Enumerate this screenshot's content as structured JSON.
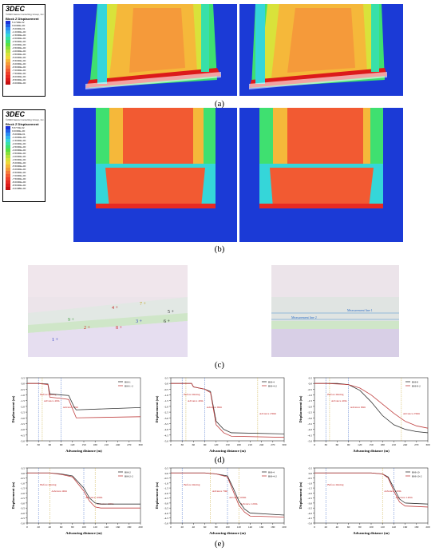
{
  "panels": {
    "a": "(a)",
    "b": "(b)",
    "c": "(c)",
    "d": "(d)",
    "e": "(e)"
  },
  "legend_a": {
    "brand": "3DEC",
    "company": "©2020 Itasca Consulting Group, Inc.",
    "title": "Block Z Displacement",
    "values": [
      "5.1746E-02",
      "0.0000E+00",
      "-5.0000E-01",
      "-1.0000E+00",
      "-1.5000E+00",
      "-2.0000E+00",
      "-2.5000E+00",
      "-3.0000E+00",
      "-3.5000E+00",
      "-4.0000E+00",
      "-4.5000E+00",
      "-5.0000E+00",
      "-5.5000E+00",
      "-6.0000E+00",
      "-6.5000E+00",
      "-7.0000E+00",
      "-7.5000E+00",
      "-8.0000E+00",
      "-8.5000E+00",
      "-9.0000E+00"
    ],
    "colors": [
      "#1a30d9",
      "#1f5ee8",
      "#2b8cf2",
      "#33b5ee",
      "#35d6d9",
      "#38e0a8",
      "#3fe070",
      "#5ae040",
      "#8ae03a",
      "#b6e23a",
      "#d9e23a",
      "#f0d83a",
      "#f5b83a",
      "#f59a3a",
      "#f57a3a",
      "#f25a32",
      "#ee3f2a",
      "#e82a22",
      "#dc1a1a",
      "#c41010"
    ]
  },
  "legend_b": {
    "brand": "3DEC",
    "company": "©2020 Itasca Consulting Group, Inc.",
    "title": "Block Z Displacement",
    "values": [
      "5.5774E-02",
      "0.0000E+00",
      "-5.0000E-01",
      "-1.0000E+00",
      "-1.5000E+00",
      "-2.0000E+00",
      "-2.5000E+00",
      "-3.0000E+00",
      "-3.5000E+00",
      "-4.0000E+00",
      "-4.5000E+00",
      "-5.0000E+00",
      "-5.5000E+00",
      "-6.0000E+00",
      "-6.5000E+00",
      "-7.0000E+00",
      "-7.5000E+00",
      "-8.0000E+00",
      "-8.5000E+00",
      "-9.0188E+00"
    ],
    "colors": [
      "#1a30d9",
      "#1f5ee8",
      "#2b8cf2",
      "#33b5ee",
      "#35d6d9",
      "#38e0a8",
      "#3fe070",
      "#5ae040",
      "#8ae03a",
      "#b6e23a",
      "#d9e23a",
      "#f0d83a",
      "#f5b83a",
      "#f59a3a",
      "#f57a3a",
      "#f25a32",
      "#ee3f2a",
      "#e82a22",
      "#dc1a1a",
      "#c41010"
    ]
  },
  "model_c": {
    "left_points": [
      "1",
      "2",
      "3",
      "4",
      "5",
      "6",
      "7",
      "8",
      "9"
    ],
    "right_labels": [
      "Measurement line 1",
      "Measurement line 2"
    ]
  },
  "charts_d": [
    {
      "title": "",
      "xlabel": "Advancing distance (m)",
      "ylabel": "Displacement (m)",
      "legend": [
        "BH-1",
        "BH-1-2"
      ],
      "annotations": [
        "Before mining",
        "Advance 40m",
        "Advance 90m"
      ],
      "xticks": [
        "0",
        "30",
        "60",
        "90",
        "120",
        "150",
        "180",
        "210",
        "240",
        "270",
        "300"
      ],
      "yticks": [
        "0.5",
        "0.0",
        "-0.5",
        "-1.0",
        "-1.5",
        "-2.0",
        "-2.5",
        "-3.0",
        "-3.5",
        "-4.0",
        "-4.5",
        "-5.0"
      ],
      "series": [
        {
          "name": "BH-1",
          "x": [
            0,
            30,
            55,
            60,
            90,
            110,
            125,
            130,
            300
          ],
          "y": [
            0.0,
            0.0,
            -0.05,
            -0.9,
            -1.0,
            -1.05,
            -2.1,
            -2.3,
            -2.1
          ]
        },
        {
          "name": "BH-1-2",
          "x": [
            0,
            30,
            55,
            60,
            90,
            110,
            125,
            130,
            300
          ],
          "y": [
            0.0,
            0.0,
            -0.1,
            -1.2,
            -1.3,
            -1.4,
            -2.6,
            -3.0,
            -2.9
          ]
        }
      ]
    },
    {
      "title": "",
      "xlabel": "Advancing distance (m)",
      "ylabel": "Displacement (m)",
      "legend": [
        "BH-4",
        "BH-4-2"
      ],
      "annotations": [
        "Before mining",
        "Advance 40m",
        "Advance 90m",
        "Advance 230m"
      ],
      "xticks": [
        "0",
        "30",
        "60",
        "90",
        "120",
        "150",
        "180",
        "210",
        "240",
        "270",
        "300"
      ],
      "yticks": [
        "0.5",
        "0.0",
        "-0.5",
        "-1.0",
        "-1.5",
        "-2.0",
        "-2.5",
        "-3.0",
        "-3.5",
        "-4.0",
        "-4.5",
        "-5.0"
      ],
      "series": [
        {
          "name": "BH-4",
          "x": [
            0,
            30,
            55,
            60,
            90,
            105,
            120,
            140,
            160,
            300
          ],
          "y": [
            0.0,
            0.0,
            0.0,
            -0.3,
            -0.5,
            -0.7,
            -3.3,
            -4.0,
            -4.3,
            -4.4
          ]
        },
        {
          "name": "BH-4-2",
          "x": [
            0,
            30,
            55,
            60,
            90,
            105,
            120,
            140,
            160,
            300
          ],
          "y": [
            0.0,
            0.0,
            0.0,
            -0.3,
            -0.5,
            -0.8,
            -3.6,
            -4.3,
            -4.6,
            -4.7
          ]
        }
      ]
    },
    {
      "title": "",
      "xlabel": "Advancing distance (m)",
      "ylabel": "Displacement (m)",
      "legend": [
        "BH-8",
        "BH-8-2"
      ],
      "annotations": [
        "Before mining",
        "Advance 40m",
        "Advance 90m",
        "Advance 230m"
      ],
      "xticks": [
        "0",
        "30",
        "60",
        "90",
        "120",
        "150",
        "180",
        "210",
        "240",
        "270",
        "300"
      ],
      "yticks": [
        "0.5",
        "0.0",
        "-0.5",
        "-1.0",
        "-1.5",
        "-2.0",
        "-2.5",
        "-3.0",
        "-3.5",
        "-4.0",
        "-4.5",
        "-5.0"
      ],
      "series": [
        {
          "name": "BH-8",
          "x": [
            0,
            30,
            60,
            90,
            120,
            150,
            180,
            210,
            240,
            270,
            300
          ],
          "y": [
            0.0,
            0.0,
            0.0,
            -0.1,
            -0.6,
            -1.6,
            -2.8,
            -3.6,
            -4.0,
            -4.2,
            -4.3
          ]
        },
        {
          "name": "BH-8-2",
          "x": [
            0,
            30,
            60,
            90,
            120,
            150,
            180,
            210,
            240,
            270,
            300
          ],
          "y": [
            0.0,
            0.0,
            -0.05,
            -0.1,
            -0.4,
            -1.0,
            -1.8,
            -2.6,
            -3.3,
            -3.7,
            -3.9
          ]
        }
      ]
    }
  ],
  "charts_e": [
    {
      "title": "",
      "xlabel": "Advancing distance (m)",
      "ylabel": "Displacement (m)",
      "legend": [
        "BH-2",
        "BH-2-2"
      ],
      "annotations": [
        "Before mining",
        "Advance 40m",
        "Advance 100m",
        "Advance 120m"
      ],
      "xticks": [
        "0",
        "20",
        "40",
        "60",
        "80",
        "100",
        "120",
        "140",
        "160",
        "180",
        "200"
      ],
      "yticks": [
        "0.5",
        "0.0",
        "-0.5",
        "-1.0",
        "-1.5",
        "-2.0",
        "-2.5",
        "-3.0",
        "-3.5",
        "-4.0",
        "-4.5",
        "-5.0"
      ],
      "series": [
        {
          "name": "BH-2",
          "x": [
            0,
            20,
            40,
            60,
            80,
            100,
            110,
            120,
            130,
            200
          ],
          "y": [
            0.0,
            0.0,
            0.0,
            -0.1,
            -0.3,
            -1.5,
            -2.5,
            -3.0,
            -3.1,
            -3.1
          ]
        },
        {
          "name": "BH-2-2",
          "x": [
            0,
            20,
            40,
            60,
            80,
            100,
            110,
            120,
            130,
            200
          ],
          "y": [
            0.0,
            0.0,
            0.0,
            -0.15,
            -0.4,
            -1.8,
            -2.8,
            -3.4,
            -3.5,
            -3.5
          ]
        }
      ]
    },
    {
      "title": "",
      "xlabel": "Advancing distance (m)",
      "ylabel": "Displacement (m)",
      "legend": [
        "BH-4",
        "BH-4-2"
      ],
      "annotations": [
        "Before mining",
        "Advance 70m",
        "Advance 100m",
        "Advance 120m"
      ],
      "xticks": [
        "0",
        "20",
        "40",
        "60",
        "80",
        "100",
        "120",
        "140",
        "160",
        "180",
        "200"
      ],
      "yticks": [
        "0.5",
        "0.0",
        "-0.5",
        "-1.0",
        "-1.5",
        "-2.0",
        "-2.5",
        "-3.0",
        "-3.5",
        "-4.0",
        "-4.5",
        "-5.0"
      ],
      "series": [
        {
          "name": "BH-4",
          "x": [
            0,
            20,
            40,
            60,
            80,
            100,
            110,
            120,
            130,
            140,
            200
          ],
          "y": [
            0.0,
            0.0,
            0.0,
            0.0,
            -0.1,
            -0.3,
            -1.5,
            -2.8,
            -3.6,
            -4.0,
            -4.2
          ]
        },
        {
          "name": "BH-4-2",
          "x": [
            0,
            20,
            40,
            60,
            80,
            100,
            110,
            120,
            130,
            140,
            200
          ],
          "y": [
            0.0,
            0.0,
            0.0,
            0.0,
            -0.1,
            -0.4,
            -1.8,
            -3.2,
            -3.9,
            -4.3,
            -4.4
          ]
        }
      ]
    },
    {
      "title": "",
      "xlabel": "Advancing distance (m)",
      "ylabel": "Displacement (m)",
      "legend": [
        "BH-10",
        "BH-10-2"
      ],
      "annotations": [
        "Before mining",
        "Advance 120m",
        "Advance 140m"
      ],
      "xticks": [
        "0",
        "20",
        "40",
        "60",
        "80",
        "100",
        "120",
        "140",
        "160",
        "180",
        "200"
      ],
      "yticks": [
        "0.5",
        "0.0",
        "-0.5",
        "-1.0",
        "-1.5",
        "-2.0",
        "-2.5",
        "-3.0",
        "-3.5",
        "-4.0",
        "-4.5",
        "-5.0"
      ],
      "series": [
        {
          "name": "BH-10",
          "x": [
            0,
            20,
            40,
            60,
            80,
            100,
            120,
            130,
            140,
            150,
            160,
            200
          ],
          "y": [
            0.0,
            0.0,
            0.0,
            0.0,
            0.0,
            0.0,
            -0.1,
            -0.4,
            -1.5,
            -2.6,
            -3.0,
            -3.1
          ]
        },
        {
          "name": "BH-10-2",
          "x": [
            0,
            20,
            40,
            60,
            80,
            100,
            120,
            130,
            140,
            150,
            160,
            200
          ],
          "y": [
            0.0,
            0.0,
            0.0,
            0.0,
            0.0,
            0.0,
            -0.1,
            -0.5,
            -1.8,
            -2.9,
            -3.3,
            -3.4
          ]
        }
      ]
    }
  ]
}
